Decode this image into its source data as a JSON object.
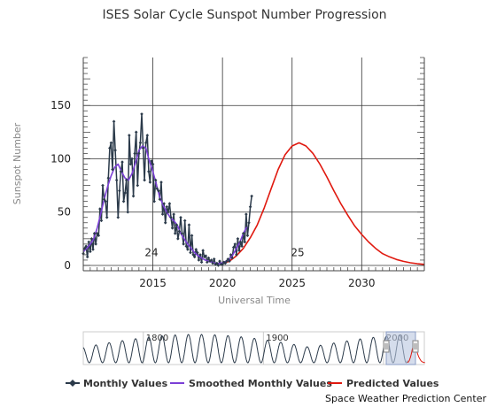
{
  "chart_data": {
    "type": "line",
    "title": "ISES Solar Cycle Sunspot Number Progression",
    "xlabel": "Universal Time",
    "ylabel": "Sunspot Number",
    "xlim": [
      2010.0,
      2034.5
    ],
    "ylim": [
      -5,
      195
    ],
    "x_ticks": [
      2015,
      2020,
      2025,
      2030
    ],
    "y_ticks": [
      0,
      50,
      100,
      150
    ],
    "grid": true,
    "legend_position": "bottom",
    "cycle_labels": [
      {
        "label": "24",
        "x": 2014.9,
        "y": 12
      },
      {
        "label": "25",
        "x": 2025.4,
        "y": 12
      }
    ],
    "series": [
      {
        "name": "Monthly Values",
        "color": "#2b3a4a",
        "marker": "diamond",
        "x": [
          2010.0,
          2010.1,
          2010.2,
          2010.3,
          2010.4,
          2010.5,
          2010.6,
          2010.7,
          2010.8,
          2010.9,
          2011.0,
          2011.1,
          2011.2,
          2011.3,
          2011.4,
          2011.5,
          2011.6,
          2011.7,
          2011.8,
          2011.9,
          2012.0,
          2012.1,
          2012.2,
          2012.3,
          2012.4,
          2012.5,
          2012.6,
          2012.7,
          2012.8,
          2012.9,
          2013.0,
          2013.1,
          2013.2,
          2013.3,
          2013.4,
          2013.5,
          2013.6,
          2013.7,
          2013.8,
          2013.9,
          2014.0,
          2014.1,
          2014.2,
          2014.3,
          2014.4,
          2014.5,
          2014.6,
          2014.7,
          2014.8,
          2014.9,
          2015.0,
          2015.1,
          2015.2,
          2015.3,
          2015.4,
          2015.5,
          2015.6,
          2015.7,
          2015.8,
          2015.9,
          2016.0,
          2016.1,
          2016.2,
          2016.3,
          2016.4,
          2016.5,
          2016.6,
          2016.7,
          2016.8,
          2016.9,
          2017.0,
          2017.1,
          2017.2,
          2017.3,
          2017.4,
          2017.5,
          2017.6,
          2017.7,
          2017.8,
          2017.9,
          2018.0,
          2018.1,
          2018.2,
          2018.3,
          2018.4,
          2018.5,
          2018.6,
          2018.7,
          2018.8,
          2018.9,
          2019.0,
          2019.1,
          2019.2,
          2019.3,
          2019.4,
          2019.5,
          2019.6,
          2019.7,
          2019.8,
          2019.9,
          2020.0,
          2020.1,
          2020.2,
          2020.3,
          2020.4,
          2020.5,
          2020.6,
          2020.7,
          2020.8,
          2020.9,
          2021.0,
          2021.1,
          2021.2,
          2021.3,
          2021.4,
          2021.5,
          2021.6,
          2021.7,
          2021.8,
          2021.9,
          2022.0,
          2022.1
        ],
        "values": [
          11,
          16,
          18,
          8,
          22,
          13,
          25,
          15,
          30,
          20,
          30,
          28,
          53,
          42,
          75,
          62,
          60,
          45,
          82,
          110,
          115,
          90,
          135,
          108,
          80,
          45,
          70,
          88,
          97,
          60,
          68,
          80,
          50,
          122,
          95,
          100,
          65,
          105,
          125,
          75,
          105,
          115,
          142,
          110,
          80,
          115,
          122,
          88,
          78,
          98,
          95,
          60,
          80,
          72,
          70,
          62,
          78,
          48,
          58,
          40,
          55,
          50,
          58,
          45,
          35,
          48,
          30,
          38,
          25,
          32,
          45,
          30,
          20,
          42,
          18,
          15,
          38,
          12,
          28,
          10,
          8,
          15,
          12,
          5,
          10,
          3,
          14,
          8,
          9,
          3,
          7,
          4,
          5,
          2,
          6,
          1,
          2,
          0,
          4,
          1,
          1,
          3,
          2,
          4,
          6,
          4,
          10,
          7,
          17,
          20,
          10,
          25,
          14,
          22,
          18,
          30,
          22,
          48,
          28,
          40,
          55,
          65
        ],
        "_comment_end": "monthly sunspot values (SIDC scale)"
      },
      {
        "name": "Smoothed Monthly Values",
        "color": "#7b3fd6",
        "x": [
          2010.0,
          2010.25,
          2010.5,
          2010.75,
          2011.0,
          2011.25,
          2011.5,
          2011.75,
          2012.0,
          2012.25,
          2012.5,
          2012.75,
          2013.0,
          2013.25,
          2013.5,
          2013.75,
          2014.0,
          2014.25,
          2014.5,
          2014.75,
          2015.0,
          2015.25,
          2015.5,
          2015.75,
          2016.0,
          2016.25,
          2016.5,
          2016.75,
          2017.0,
          2017.25,
          2017.5,
          2017.75,
          2018.0,
          2018.25,
          2018.5,
          2018.75,
          2019.0,
          2019.25,
          2019.5,
          2019.75,
          2020.0,
          2020.25,
          2020.5,
          2020.75,
          2021.0,
          2021.25,
          2021.5,
          2021.75
        ],
        "values": [
          13,
          16,
          20,
          25,
          35,
          48,
          62,
          74,
          84,
          92,
          95,
          88,
          82,
          80,
          86,
          96,
          108,
          112,
          110,
          98,
          88,
          76,
          64,
          56,
          50,
          45,
          42,
          38,
          30,
          25,
          20,
          16,
          12,
          9,
          7,
          5,
          4,
          3,
          2,
          1.8,
          2.5,
          4,
          6,
          10,
          16,
          22,
          30,
          36
        ]
      },
      {
        "name": "Predicted Values",
        "color": "#e0190f",
        "x": [
          2020.0,
          2020.5,
          2021.0,
          2021.5,
          2022.0,
          2022.5,
          2023.0,
          2023.5,
          2024.0,
          2024.5,
          2025.0,
          2025.5,
          2026.0,
          2026.5,
          2027.0,
          2027.5,
          2028.0,
          2028.5,
          2029.0,
          2029.5,
          2030.0,
          2030.5,
          2031.0,
          2031.5,
          2032.0,
          2032.5,
          2033.0,
          2033.5,
          2034.0,
          2034.5
        ],
        "values": [
          1.8,
          4,
          9,
          16,
          26,
          38,
          54,
          72,
          90,
          104,
          112,
          115,
          112,
          105,
          95,
          83,
          70,
          58,
          47,
          37,
          29,
          22,
          16,
          11,
          8,
          5.5,
          3.8,
          2.5,
          1.6,
          1
        ]
      }
    ],
    "navigator": {
      "x_ticks": [
        "1800",
        "1900",
        "2000"
      ]
    }
  },
  "legend": {
    "monthly": "Monthly Values",
    "smoothed": "Smoothed Monthly Values",
    "predicted": "Predicted Values"
  },
  "credit": "Space Weather Prediction Center"
}
